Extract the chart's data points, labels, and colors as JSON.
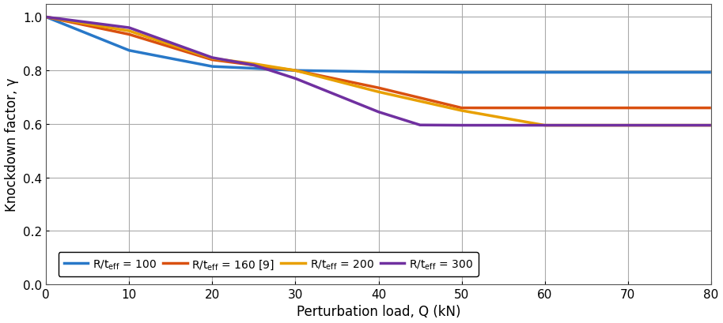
{
  "series": [
    {
      "label_main": "R/t",
      "label_sub": "eff",
      "label_val": " = 100",
      "color": "#2878C8",
      "x": [
        0,
        10,
        20,
        25,
        30,
        40,
        50,
        60,
        70,
        80
      ],
      "y": [
        1.0,
        0.875,
        0.815,
        0.808,
        0.8,
        0.795,
        0.793,
        0.793,
        0.793,
        0.793
      ]
    },
    {
      "label_main": "R/t",
      "label_sub": "eff",
      "label_val": " = 160 [9]",
      "color": "#D95010",
      "x": [
        0,
        10,
        20,
        25,
        30,
        40,
        50,
        60,
        70,
        80
      ],
      "y": [
        1.0,
        0.935,
        0.84,
        0.82,
        0.8,
        0.735,
        0.66,
        0.66,
        0.66,
        0.66
      ]
    },
    {
      "label_main": "R/t",
      "label_sub": "eff",
      "label_val": " = 200",
      "color": "#E8A000",
      "x": [
        0,
        10,
        20,
        25,
        30,
        40,
        50,
        60,
        70,
        80
      ],
      "y": [
        1.0,
        0.948,
        0.845,
        0.825,
        0.8,
        0.72,
        0.65,
        0.595,
        0.595,
        0.595
      ]
    },
    {
      "label_main": "R/t",
      "label_sub": "eff",
      "label_val": " = 300",
      "color": "#7030A0",
      "x": [
        0,
        10,
        20,
        25,
        30,
        40,
        45,
        50,
        60,
        70,
        80
      ],
      "y": [
        1.0,
        0.96,
        0.848,
        0.82,
        0.77,
        0.645,
        0.596,
        0.595,
        0.595,
        0.595,
        0.595
      ]
    }
  ],
  "xlabel": "Perturbation load, Q (kN)",
  "ylabel": "Knockdown factor, γ",
  "xlim": [
    0,
    80
  ],
  "ylim": [
    0,
    1.05
  ],
  "xticks": [
    0,
    10,
    20,
    30,
    40,
    50,
    60,
    70,
    80
  ],
  "yticks": [
    0,
    0.2,
    0.4,
    0.6,
    0.8,
    1.0
  ],
  "grid_color": "#AAAAAA",
  "background_color": "#FFFFFF",
  "linewidth": 2.5,
  "figwidth": 9.14,
  "figheight": 4.1,
  "dpi": 100
}
